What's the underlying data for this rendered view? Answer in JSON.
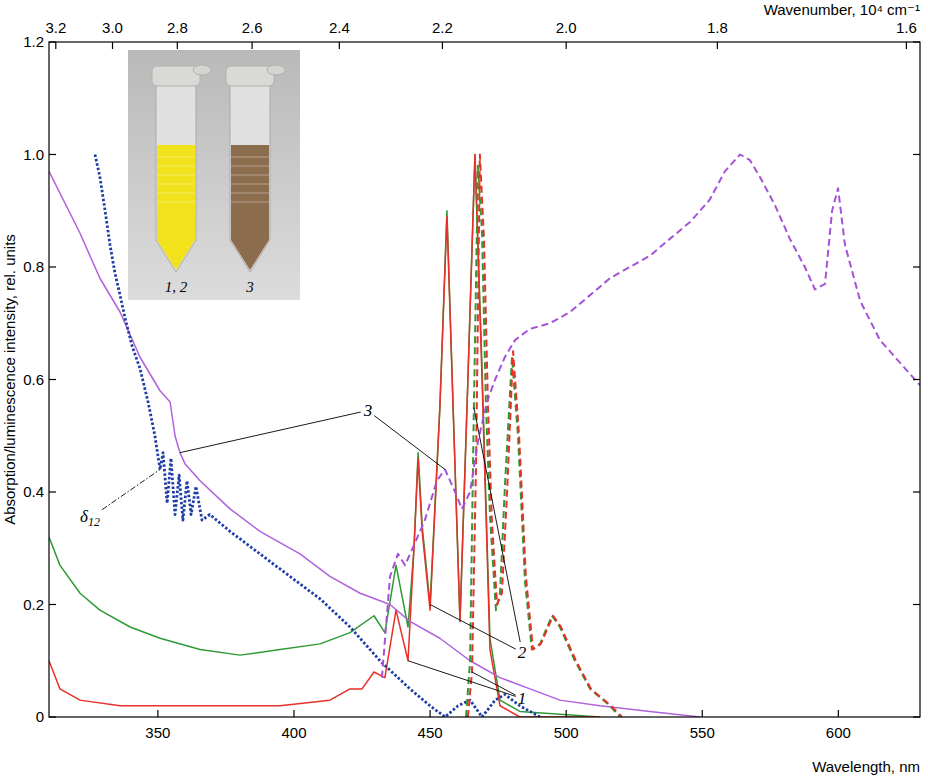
{
  "chart_data": {
    "type": "line",
    "xlabel": "Wavelength, nm",
    "ylabel": "Absorption/luminescence intensity, rel. units",
    "x2label": "Wavenumber, 10⁴ cm⁻¹",
    "xlim": [
      310,
      630
    ],
    "ylim": [
      0,
      1.2
    ],
    "xticks": [
      350,
      400,
      450,
      500,
      550,
      600
    ],
    "yticks": [
      0,
      0.2,
      0.4,
      0.6,
      0.8,
      {
        "value": 1,
        "label": "1.0"
      },
      1.2
    ],
    "x2ticks": [
      3.2,
      {
        "value": 3,
        "label": "3.0"
      },
      2.8,
      2.6,
      2.4,
      2.2,
      {
        "value": 2,
        "label": "2.0"
      },
      1.8,
      1.6
    ],
    "grid": false,
    "series": [
      {
        "color": "#2f9a35",
        "line_style": "solid",
        "x": [
          310,
          314,
          321.4,
          328.7,
          339.8,
          350.8,
          365.5,
          380.2,
          394.9,
          409.6,
          420.6,
          429.4,
          433.4,
          437.5,
          441.9,
          444.1,
          445.6,
          447.1,
          450.0,
          453.6,
          456.2,
          458.8,
          461.0,
          463.9,
          466.5,
          469.1,
          472.0,
          475.7,
          483.0,
          512.4
        ],
        "values": [
          0.32,
          0.27,
          0.22,
          0.19,
          0.16,
          0.14,
          0.12,
          0.11,
          0.12,
          0.13,
          0.15,
          0.18,
          0.15,
          0.27,
          0.16,
          0.3,
          0.47,
          0.34,
          0.2,
          0.55,
          0.9,
          0.5,
          0.17,
          0.6,
          1.0,
          0.62,
          0.14,
          0.03,
          0.01,
          0
        ]
      },
      {
        "color": "#e8302a",
        "line_style": "solid",
        "x": [
          310,
          314,
          321.4,
          336.1,
          365.5,
          394.9,
          413.2,
          420.6,
          425.0,
          429.4,
          433.4,
          437.5,
          441.9,
          444.1,
          445.6,
          447.1,
          450.0,
          453.6,
          456.2,
          458.8,
          461.0,
          463.9,
          466.5,
          469.1,
          472.0,
          475.7,
          483.0,
          512.4
        ],
        "values": [
          0.1,
          0.05,
          0.03,
          0.02,
          0.02,
          0.02,
          0.03,
          0.05,
          0.05,
          0.08,
          0.07,
          0.19,
          0.1,
          0.3,
          0.46,
          0.33,
          0.19,
          0.55,
          0.89,
          0.5,
          0.17,
          0.6,
          1.0,
          0.6,
          0.12,
          0.02,
          0,
          0
        ]
      },
      {
        "color": "#b061dc",
        "line_style": "solid",
        "x": [
          310,
          321.4,
          328.7,
          336.1,
          343.4,
          350.8,
          354.5,
          356.3,
          358.1,
          360.0,
          365.5,
          376.5,
          387.5,
          402.2,
          413.2,
          424.3,
          435.3,
          442.6,
          453.6,
          464.7,
          475.7,
          486.7,
          497.7,
          512.4,
          530.8,
          549.2
        ],
        "values": [
          0.97,
          0.86,
          0.78,
          0.72,
          0.64,
          0.58,
          0.56,
          0.5,
          0.47,
          0.45,
          0.42,
          0.37,
          0.33,
          0.29,
          0.25,
          0.22,
          0.2,
          0.17,
          0.14,
          0.1,
          0.07,
          0.05,
          0.03,
          0.02,
          0.01,
          0
        ]
      },
      {
        "color": "#1f3fa6",
        "line_style": "dotted",
        "x": [
          326.9,
          328.7,
          330.6,
          332.4,
          334.2,
          336.1,
          337.9,
          340.5,
          343.4,
          346.4,
          348.9,
          350.8,
          351.9,
          353.4,
          354.8,
          356.3,
          357.8,
          359.2,
          360.7,
          362.2,
          364.0,
          366.2,
          369.1,
          376.5,
          387.5,
          398.5,
          409.6,
          420.6,
          431.6,
          442.6,
          450.0,
          455.5,
          460.3,
          464.7,
          469.1,
          473.9,
          477.5,
          483.0,
          490.4
        ],
        "values": [
          1.0,
          0.96,
          0.9,
          0.84,
          0.79,
          0.75,
          0.71,
          0.66,
          0.62,
          0.56,
          0.5,
          0.44,
          0.47,
          0.38,
          0.46,
          0.36,
          0.43,
          0.35,
          0.42,
          0.36,
          0.41,
          0.35,
          0.36,
          0.33,
          0.29,
          0.25,
          0.21,
          0.16,
          0.1,
          0.05,
          0.02,
          0,
          0.02,
          0.03,
          0,
          0.03,
          0.04,
          0.02,
          0
        ]
      },
      {
        "color": "#2f9a35",
        "line_style": "dashed",
        "x": [
          463.2,
          464.7,
          466.1,
          467.6,
          469.1,
          470.5,
          472.0,
          474.2,
          475.7,
          477.5,
          480.1,
          482.3,
          484.9,
          487.4,
          490.4,
          494.8,
          497.7,
          503.2,
          508.8,
          516.1,
          519.8
        ],
        "values": [
          0,
          0.1,
          0.55,
          0.98,
          0.86,
          0.56,
          0.36,
          0.19,
          0.22,
          0.41,
          0.64,
          0.5,
          0.24,
          0.12,
          0.13,
          0.18,
          0.16,
          0.1,
          0.05,
          0.02,
          0
        ]
      },
      {
        "color": "#e8302a",
        "line_style": "dashed",
        "x": [
          463.9,
          465.4,
          466.9,
          468.3,
          469.8,
          471.3,
          472.7,
          474.6,
          476.4,
          478.3,
          480.5,
          482.7,
          485.2,
          487.8,
          490.7,
          495.2,
          498.1,
          503.6,
          509.1,
          516.5,
          520.5
        ],
        "values": [
          0,
          0.08,
          0.45,
          1.0,
          0.85,
          0.55,
          0.35,
          0.2,
          0.22,
          0.4,
          0.65,
          0.5,
          0.25,
          0.12,
          0.13,
          0.18,
          0.16,
          0.1,
          0.05,
          0.02,
          0
        ]
      },
      {
        "color": "#a552d8",
        "line_style": "dashed",
        "x": [
          432.3,
          435.3,
          438.2,
          440.8,
          444.5,
          448.1,
          452.5,
          455.5,
          459.2,
          461.7,
          464.7,
          467.6,
          470.9,
          473.9,
          477.5,
          481.2,
          486.7,
          494.1,
          501.4,
          508.8,
          516.1,
          523.4,
          530.8,
          538.1,
          545.5,
          552.8,
          558.3,
          563.9,
          567.5,
          571.2,
          576.7,
          582.2,
          587.7,
          591.4,
          595.1,
          597.7,
          599.9,
          602.4,
          608.0,
          615.3,
          622.6,
          630.0
        ],
        "values": [
          0.07,
          0.25,
          0.29,
          0.27,
          0.31,
          0.35,
          0.42,
          0.44,
          0.4,
          0.37,
          0.4,
          0.49,
          0.56,
          0.6,
          0.64,
          0.67,
          0.69,
          0.7,
          0.72,
          0.75,
          0.78,
          0.8,
          0.82,
          0.85,
          0.88,
          0.92,
          0.97,
          1.0,
          0.99,
          0.96,
          0.91,
          0.85,
          0.8,
          0.76,
          0.77,
          0.9,
          0.94,
          0.84,
          0.74,
          0.67,
          0.63,
          0.59
        ]
      }
    ],
    "annotations": [
      {
        "text": "1",
        "series": [
          1,
          5
        ]
      },
      {
        "text": "2",
        "series": [
          0,
          4
        ]
      },
      {
        "text": "3",
        "series": [
          2,
          6
        ]
      },
      {
        "text": "δ12",
        "series": [
          3
        ]
      }
    ],
    "inset_labels": [
      "1, 2",
      "3"
    ]
  }
}
